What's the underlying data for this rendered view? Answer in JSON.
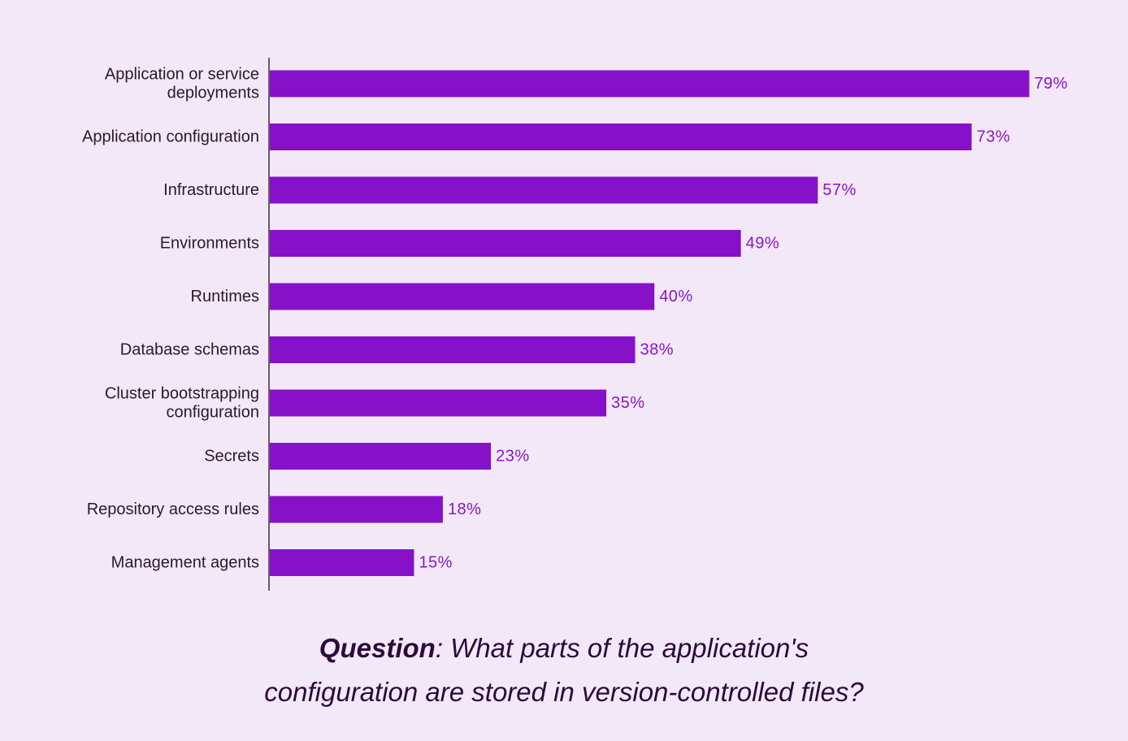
{
  "chart_data": {
    "type": "bar",
    "orientation": "horizontal",
    "categories": [
      "Application or service deployments",
      "Application configuration",
      "Infrastructure",
      "Environments",
      "Runtimes",
      "Database schemas",
      "Cluster bootstrapping configuration",
      "Secrets",
      "Repository access rules",
      "Management agents"
    ],
    "category_lines": [
      [
        "Application or service",
        "deployments"
      ],
      [
        "Application configuration"
      ],
      [
        "Infrastructure"
      ],
      [
        "Environments"
      ],
      [
        "Runtimes"
      ],
      [
        "Database schemas"
      ],
      [
        "Cluster bootstrapping",
        "configuration"
      ],
      [
        "Secrets"
      ],
      [
        "Repository access rules"
      ],
      [
        "Management agents"
      ]
    ],
    "values": [
      79,
      73,
      57,
      49,
      40,
      38,
      35,
      23,
      18,
      15
    ],
    "value_labels": [
      "79%",
      "73%",
      "57%",
      "49%",
      "40%",
      "38%",
      "35%",
      "23%",
      "18%",
      "15%"
    ],
    "bar_color": "#8711c8",
    "label_color": "#8a16c9",
    "grid": false,
    "xlim": [
      0,
      100
    ]
  },
  "caption": {
    "bold": "Question",
    "line1_rest": ": What parts of the application's",
    "line2": "configuration are stored in version-controlled files?"
  }
}
